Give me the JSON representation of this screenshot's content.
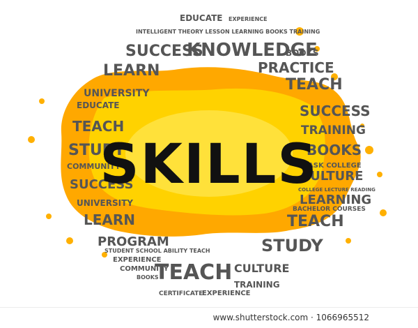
{
  "main_word": "SKILLS",
  "colors": {
    "splash": "#ffa800",
    "splash_light": "#ffd200",
    "text": "#555555",
    "main_text": "#111111"
  },
  "cloud_words": [
    "EDUCATE",
    "EXPERIENCE",
    "INTELLIGENT THEORY LESSON LEARNING BOOKS TRAINING",
    "SUCCESS",
    "KNOWLEDGE",
    "BOOKS",
    "LEARN",
    "PRACTICE",
    "UNIVERSITY",
    "TEACH",
    "EDUCATE",
    "SUCCESS",
    "TEACH",
    "TRAINING",
    "STUDY",
    "BOOKS",
    "COMMUNITY",
    "TASK COLLEGE",
    "CULTURE",
    "SUCCESS",
    "COLLEGE LECTURE READING",
    "LEARNING",
    "UNIVERSITY",
    "BACHELOR COURSES",
    "LEARN",
    "TEACH",
    "PROGRAM",
    "STUDY",
    "STUDENT SCHOOL ABILITY TEACH",
    "EXPERIENCE",
    "COMMUNITY",
    "TEACH",
    "CULTURE",
    "BOOKS",
    "TRAINING",
    "CERTIFICATE",
    "EXPERIENCE"
  ],
  "footer": {
    "text": "www.shutterstock.com · 1066965512"
  }
}
